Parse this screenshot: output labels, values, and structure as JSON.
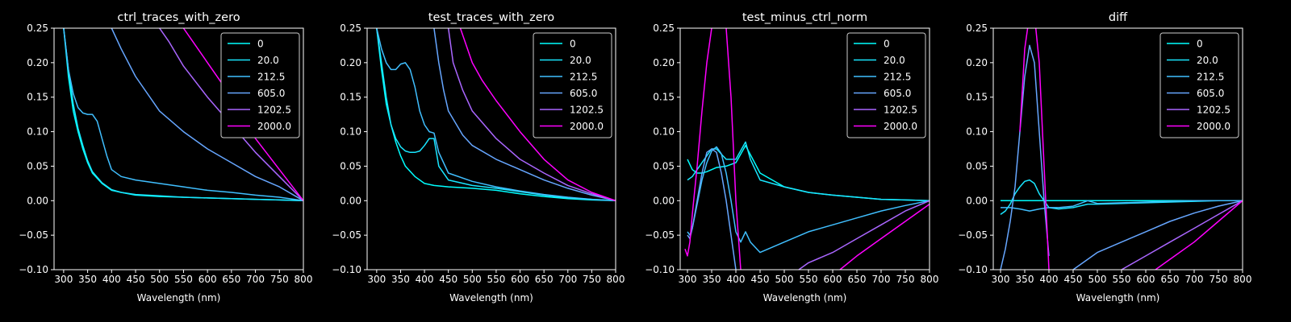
{
  "figure": {
    "background": "#000000",
    "foreground": "#ffffff"
  },
  "series_colors": [
    "#00ffff",
    "#19e6ff",
    "#40bfff",
    "#66a6ff",
    "#aa66ff",
    "#ff00ff"
  ],
  "chart_data": [
    {
      "type": "line",
      "title": "ctrl_traces_with_zero",
      "xlabel": "Wavelength (nm)",
      "ylabel": "",
      "xlim": [
        280,
        800
      ],
      "ylim": [
        -0.1,
        0.25
      ],
      "xticks": [
        "300",
        "350",
        "400",
        "450",
        "500",
        "550",
        "600",
        "650",
        "700",
        "750",
        "800"
      ],
      "yticks": [
        "−0.10",
        "−0.05",
        "0.00",
        "0.05",
        "0.10",
        "0.15",
        "0.20",
        "0.25"
      ],
      "grid": false,
      "legend": "top-right",
      "series": [
        {
          "name": "0",
          "x": [
            300,
            310,
            320,
            330,
            340,
            350,
            360,
            380,
            400,
            420,
            450,
            500,
            550,
            600,
            650,
            700,
            750,
            800
          ],
          "y": [
            0.25,
            0.18,
            0.13,
            0.1,
            0.075,
            0.055,
            0.04,
            0.025,
            0.015,
            0.012,
            0.008,
            0.006,
            0.005,
            0.004,
            0.003,
            0.002,
            0.001,
            0.0
          ]
        },
        {
          "name": "20.0",
          "x": [
            300,
            310,
            320,
            330,
            340,
            350,
            360,
            380,
            400,
            420,
            450,
            500,
            550,
            600,
            650,
            700,
            750,
            800
          ],
          "y": [
            0.25,
            0.19,
            0.14,
            0.105,
            0.08,
            0.058,
            0.042,
            0.026,
            0.016,
            0.012,
            0.009,
            0.007,
            0.005,
            0.004,
            0.003,
            0.002,
            0.001,
            0.0
          ]
        },
        {
          "name": "212.5",
          "x": [
            300,
            310,
            320,
            330,
            340,
            350,
            360,
            370,
            380,
            390,
            400,
            420,
            450,
            500,
            550,
            600,
            650,
            700,
            750,
            800
          ],
          "y": [
            0.25,
            0.19,
            0.155,
            0.135,
            0.127,
            0.125,
            0.125,
            0.115,
            0.09,
            0.065,
            0.045,
            0.035,
            0.03,
            0.025,
            0.02,
            0.015,
            0.012,
            0.008,
            0.005,
            0.0
          ]
        },
        {
          "name": "605.0",
          "x": [
            400,
            420,
            450,
            500,
            550,
            600,
            650,
            700,
            750,
            800
          ],
          "y": [
            0.25,
            0.22,
            0.18,
            0.13,
            0.1,
            0.075,
            0.055,
            0.035,
            0.02,
            0.0
          ]
        },
        {
          "name": "1202.5",
          "x": [
            500,
            520,
            550,
            600,
            650,
            700,
            750,
            800
          ],
          "y": [
            0.25,
            0.23,
            0.195,
            0.15,
            0.11,
            0.07,
            0.035,
            0.0
          ]
        },
        {
          "name": "2000.0",
          "x": [
            550,
            570,
            600,
            650,
            700,
            750,
            800
          ],
          "y": [
            0.25,
            0.23,
            0.2,
            0.15,
            0.09,
            0.045,
            0.0
          ]
        }
      ]
    },
    {
      "type": "line",
      "title": "test_traces_with_zero",
      "xlabel": "Wavelength (nm)",
      "ylabel": "",
      "xlim": [
        280,
        800
      ],
      "ylim": [
        -0.1,
        0.25
      ],
      "xticks": [
        "300",
        "350",
        "400",
        "450",
        "500",
        "550",
        "600",
        "650",
        "700",
        "750",
        "800"
      ],
      "yticks": [
        "−0.10",
        "−0.05",
        "0.00",
        "0.05",
        "0.10",
        "0.15",
        "0.20",
        "0.25"
      ],
      "grid": false,
      "legend": "top-right",
      "series": [
        {
          "name": "0",
          "x": [
            300,
            310,
            320,
            330,
            340,
            350,
            360,
            380,
            400,
            420,
            450,
            500,
            550,
            600,
            650,
            700,
            750,
            800
          ],
          "y": [
            0.25,
            0.19,
            0.14,
            0.11,
            0.085,
            0.065,
            0.05,
            0.035,
            0.025,
            0.022,
            0.02,
            0.018,
            0.015,
            0.01,
            0.006,
            0.003,
            0.001,
            0.0
          ]
        },
        {
          "name": "20.0",
          "x": [
            300,
            310,
            320,
            330,
            340,
            350,
            360,
            370,
            380,
            390,
            400,
            410,
            420,
            430,
            450,
            500,
            550,
            600,
            650,
            700,
            750,
            800
          ],
          "y": [
            0.25,
            0.2,
            0.15,
            0.11,
            0.09,
            0.078,
            0.072,
            0.07,
            0.07,
            0.072,
            0.08,
            0.09,
            0.09,
            0.05,
            0.03,
            0.022,
            0.018,
            0.013,
            0.008,
            0.004,
            0.002,
            0.0
          ]
        },
        {
          "name": "212.5",
          "x": [
            300,
            310,
            320,
            330,
            340,
            350,
            360,
            370,
            380,
            390,
            400,
            410,
            420,
            430,
            450,
            500,
            550,
            600,
            650,
            700,
            750,
            800
          ],
          "y": [
            0.25,
            0.22,
            0.2,
            0.19,
            0.19,
            0.198,
            0.2,
            0.19,
            0.165,
            0.13,
            0.11,
            0.1,
            0.098,
            0.07,
            0.04,
            0.028,
            0.02,
            0.014,
            0.009,
            0.005,
            0.002,
            0.0
          ]
        },
        {
          "name": "605.0",
          "x": [
            420,
            430,
            440,
            450,
            480,
            500,
            550,
            600,
            650,
            700,
            750,
            800
          ],
          "y": [
            0.25,
            0.2,
            0.16,
            0.13,
            0.095,
            0.08,
            0.06,
            0.045,
            0.03,
            0.018,
            0.008,
            0.0
          ]
        },
        {
          "name": "1202.5",
          "x": [
            450,
            460,
            480,
            500,
            550,
            600,
            650,
            700,
            750,
            800
          ],
          "y": [
            0.25,
            0.2,
            0.16,
            0.13,
            0.09,
            0.06,
            0.04,
            0.022,
            0.01,
            0.0
          ]
        },
        {
          "name": "2000.0",
          "x": [
            475,
            490,
            500,
            520,
            550,
            600,
            650,
            700,
            750,
            800
          ],
          "y": [
            0.25,
            0.22,
            0.2,
            0.175,
            0.145,
            0.1,
            0.06,
            0.03,
            0.012,
            0.0
          ]
        }
      ]
    },
    {
      "type": "line",
      "title": "test_minus_ctrl_norm",
      "xlabel": "Wavelength (nm)",
      "ylabel": "",
      "xlim": [
        285,
        800
      ],
      "ylim": [
        -0.1,
        0.25
      ],
      "xticks": [
        "300",
        "350",
        "400",
        "450",
        "500",
        "550",
        "600",
        "650",
        "700",
        "750",
        "800"
      ],
      "yticks": [
        "−0.10",
        "−0.05",
        "0.00",
        "0.05",
        "0.10",
        "0.15",
        "0.20",
        "0.25"
      ],
      "grid": false,
      "legend": "top-right",
      "series": [
        {
          "name": "0",
          "x": [
            300,
            310,
            320,
            330,
            340,
            350,
            360,
            380,
            400,
            420,
            450,
            500,
            550,
            600,
            650,
            700,
            750,
            800
          ],
          "y": [
            0.06,
            0.045,
            0.04,
            0.04,
            0.042,
            0.045,
            0.048,
            0.05,
            0.055,
            0.08,
            0.04,
            0.02,
            0.012,
            0.008,
            0.005,
            0.002,
            0.001,
            0.0
          ]
        },
        {
          "name": "20.0",
          "x": [
            300,
            310,
            320,
            330,
            340,
            350,
            360,
            380,
            400,
            420,
            430,
            450,
            500,
            550,
            600,
            650,
            700,
            750,
            800
          ],
          "y": [
            0.03,
            0.035,
            0.045,
            0.055,
            0.065,
            0.075,
            0.075,
            0.06,
            0.06,
            0.085,
            0.06,
            0.03,
            0.02,
            0.012,
            0.008,
            0.005,
            0.002,
            0.001,
            0.0
          ]
        },
        {
          "name": "212.5",
          "x": [
            300,
            305,
            310,
            320,
            330,
            340,
            350,
            360,
            370,
            380,
            390,
            400,
            410,
            420,
            430,
            450,
            500,
            550,
            600,
            650,
            700,
            750,
            800
          ],
          "y": [
            -0.045,
            -0.05,
            -0.04,
            -0.005,
            0.03,
            0.055,
            0.072,
            0.078,
            0.068,
            0.04,
            0.0,
            -0.045,
            -0.06,
            -0.045,
            -0.06,
            -0.075,
            -0.06,
            -0.045,
            -0.035,
            -0.025,
            -0.015,
            -0.007,
            0.0
          ]
        },
        {
          "name": "605.0",
          "x": [
            300,
            305,
            310,
            320,
            330,
            340,
            350,
            360,
            370,
            380,
            390,
            400
          ],
          "y": [
            -0.05,
            -0.055,
            -0.04,
            0.0,
            0.04,
            0.07,
            0.075,
            0.07,
            0.04,
            0.0,
            -0.05,
            -0.1
          ]
        },
        {
          "name": "1202.5",
          "x": [
            530,
            550,
            600,
            650,
            700,
            750,
            800
          ],
          "y": [
            -0.1,
            -0.09,
            -0.075,
            -0.055,
            -0.035,
            -0.015,
            0.0
          ]
        },
        {
          "name": "2000.0",
          "x": [
            295,
            300,
            305,
            310,
            320,
            330,
            340,
            350,
            360,
            370,
            380,
            390,
            400,
            410
          ],
          "y": [
            -0.07,
            -0.08,
            -0.06,
            -0.02,
            0.05,
            0.13,
            0.2,
            0.25,
            0.27,
            0.27,
            0.25,
            0.15,
            0.0,
            -0.1
          ]
        },
        {
          "name": "2000.0",
          "x": [
            615,
            650,
            700,
            750,
            800
          ],
          "y": [
            -0.1,
            -0.08,
            -0.055,
            -0.03,
            -0.005
          ]
        }
      ]
    },
    {
      "type": "line",
      "title": "diff",
      "xlabel": "Wavelength (nm)",
      "ylabel": "",
      "xlim": [
        285,
        800
      ],
      "ylim": [
        -0.1,
        0.25
      ],
      "xticks": [
        "300",
        "350",
        "400",
        "450",
        "500",
        "550",
        "600",
        "650",
        "700",
        "750",
        "800"
      ],
      "yticks": [
        "−0.10",
        "−0.05",
        "0.00",
        "0.05",
        "0.10",
        "0.15",
        "0.20",
        "0.25"
      ],
      "grid": false,
      "legend": "top-right",
      "series": [
        {
          "name": "0",
          "x": [
            300,
            800
          ],
          "y": [
            0.0,
            0.0
          ]
        },
        {
          "name": "20.0",
          "x": [
            300,
            310,
            320,
            330,
            340,
            350,
            360,
            370,
            380,
            400,
            420,
            450,
            480,
            500,
            550,
            600,
            650,
            700,
            750,
            800
          ],
          "y": [
            -0.02,
            -0.015,
            -0.005,
            0.01,
            0.02,
            0.028,
            0.03,
            0.025,
            0.01,
            -0.01,
            -0.012,
            -0.01,
            -0.005,
            -0.005,
            -0.004,
            -0.003,
            -0.002,
            -0.001,
            0.0,
            0.0
          ]
        },
        {
          "name": "212.5",
          "x": [
            300,
            320,
            340,
            360,
            380,
            400,
            420,
            450,
            480,
            500,
            550,
            600,
            650,
            700,
            750,
            800
          ],
          "y": [
            -0.01,
            -0.01,
            -0.012,
            -0.015,
            -0.012,
            -0.01,
            -0.01,
            -0.008,
            0.0,
            -0.004,
            -0.003,
            -0.002,
            -0.001,
            0.0,
            0.0,
            0.0
          ]
        },
        {
          "name": "605.0",
          "x": [
            300,
            310,
            320,
            330,
            340,
            350,
            360,
            370,
            380,
            390,
            400
          ],
          "y": [
            -0.1,
            -0.07,
            -0.03,
            0.02,
            0.1,
            0.18,
            0.225,
            0.2,
            0.1,
            0.0,
            -0.08
          ]
        },
        {
          "name": "605.0",
          "x": [
            450,
            500,
            550,
            600,
            650,
            700,
            750,
            800
          ],
          "y": [
            -0.1,
            -0.075,
            -0.06,
            -0.045,
            -0.03,
            -0.018,
            -0.008,
            0.0
          ]
        },
        {
          "name": "1202.5",
          "x": [
            550,
            600,
            650,
            700,
            750,
            800
          ],
          "y": [
            -0.1,
            -0.08,
            -0.06,
            -0.04,
            -0.02,
            0.0
          ]
        },
        {
          "name": "2000.0",
          "x": [
            340,
            350,
            360,
            370,
            380,
            390,
            400
          ],
          "y": [
            0.1,
            0.22,
            0.27,
            0.27,
            0.2,
            0.05,
            -0.1
          ]
        },
        {
          "name": "2000.0",
          "x": [
            620,
            650,
            700,
            750,
            800
          ],
          "y": [
            -0.1,
            -0.085,
            -0.06,
            -0.03,
            0.0
          ]
        }
      ]
    }
  ],
  "legend_labels": [
    "0",
    "20.0",
    "212.5",
    "605.0",
    "1202.5",
    "2000.0"
  ]
}
